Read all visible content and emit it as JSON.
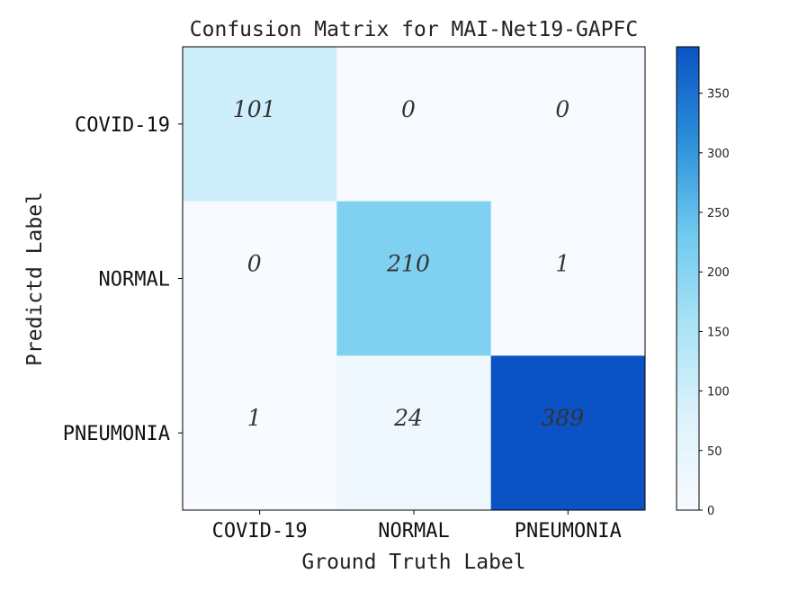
{
  "chart_data": {
    "type": "heatmap",
    "title": "Confusion Matrix for MAI-Net19-GAPFC",
    "xlabel": "Ground Truth Label",
    "ylabel": "Predictd Label",
    "x_categories": [
      "COVID-19",
      "NORMAL",
      "PNEUMONIA"
    ],
    "y_categories": [
      "COVID-19",
      "NORMAL",
      "PNEUMONIA"
    ],
    "matrix": [
      [
        101,
        0,
        0
      ],
      [
        0,
        210,
        1
      ],
      [
        1,
        24,
        389
      ]
    ],
    "cell_labels": [
      [
        "101",
        "0",
        "0"
      ],
      [
        "0",
        "210",
        "1"
      ],
      [
        "1",
        "24",
        "389"
      ]
    ],
    "colorbar": {
      "range": [
        0,
        389
      ],
      "ticks": [
        0,
        50,
        100,
        150,
        200,
        250,
        300,
        350
      ],
      "tick_labels": [
        "0",
        "50",
        "100",
        "150",
        "200",
        "250",
        "300",
        "350"
      ]
    },
    "colormap": [
      "#f7fbff",
      "#ddf2fc",
      "#a9e3f6",
      "#6ec9ef",
      "#2a8fd9",
      "#0b52c4"
    ]
  }
}
